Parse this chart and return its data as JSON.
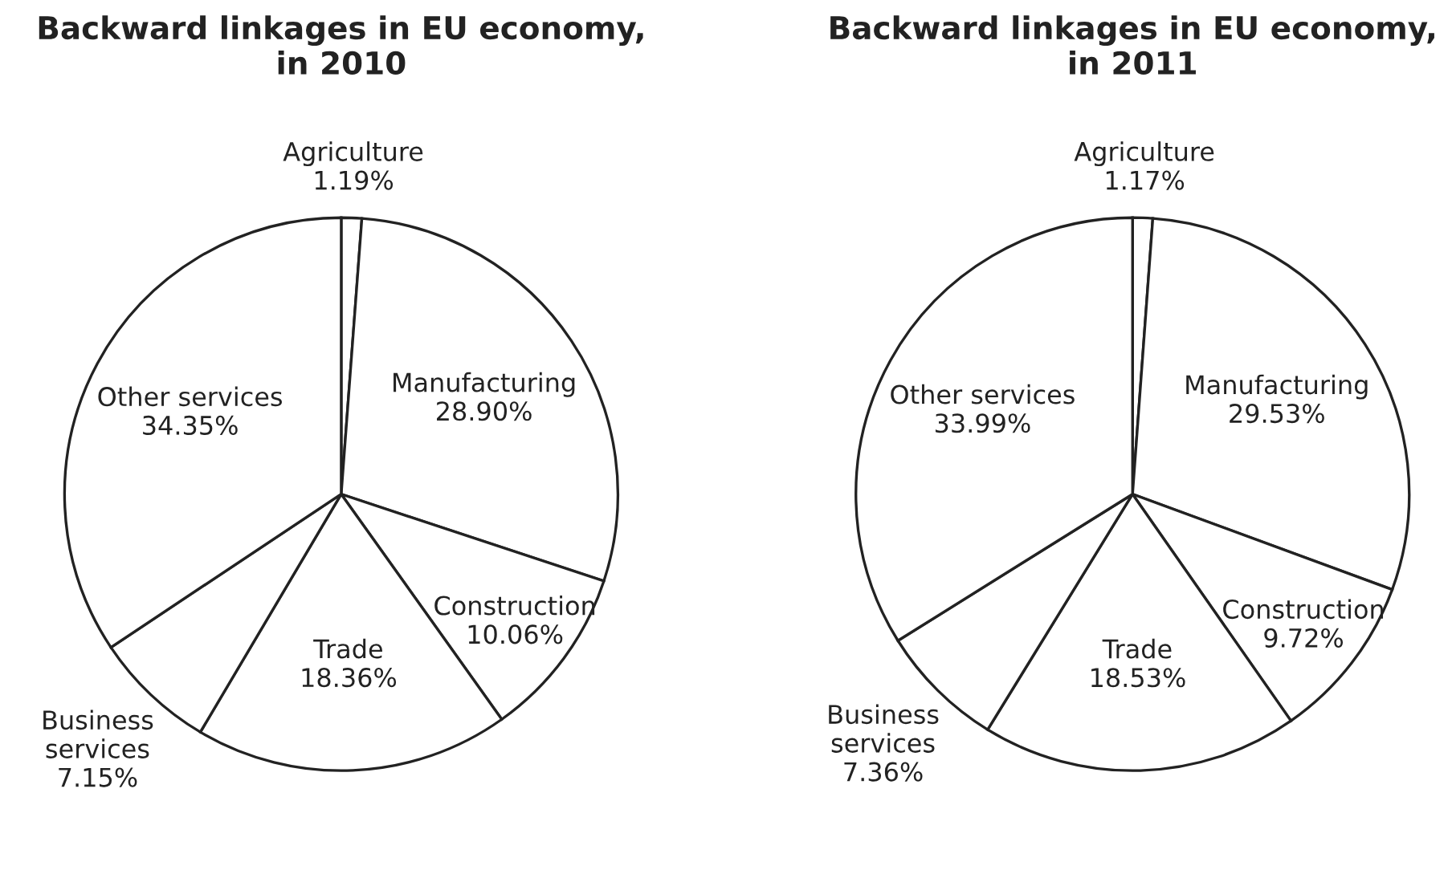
{
  "chart_data": [
    {
      "type": "pie",
      "title": "Backward linkages in EU economy,\nin 2010",
      "categories": [
        "Agriculture",
        "Manufacturing",
        "Construction",
        "Trade",
        "Business\nservices",
        "Other services"
      ],
      "values": [
        1.19,
        28.9,
        10.06,
        18.36,
        7.15,
        34.35
      ],
      "value_labels": [
        "1.19%",
        "28.90%",
        "10.06%",
        "18.36%",
        "7.15%",
        "34.35%"
      ],
      "colors": [
        "#ffffff",
        "#ffffff",
        "#ffffff",
        "#ffffff",
        "#ffffff",
        "#ffffff"
      ]
    },
    {
      "type": "pie",
      "title": "Backward linkages in EU economy,\nin 2011",
      "categories": [
        "Agriculture",
        "Manufacturing",
        "Construction",
        "Trade",
        "Business\nservices",
        "Other services"
      ],
      "values": [
        1.17,
        29.53,
        9.72,
        18.53,
        7.36,
        33.99
      ],
      "value_labels": [
        "1.17%",
        "29.53%",
        "9.72%",
        "18.53%",
        "7.36%",
        "33.99%"
      ],
      "colors": [
        "#ffffff",
        "#ffffff",
        "#ffffff",
        "#ffffff",
        "#ffffff",
        "#ffffff"
      ]
    }
  ]
}
